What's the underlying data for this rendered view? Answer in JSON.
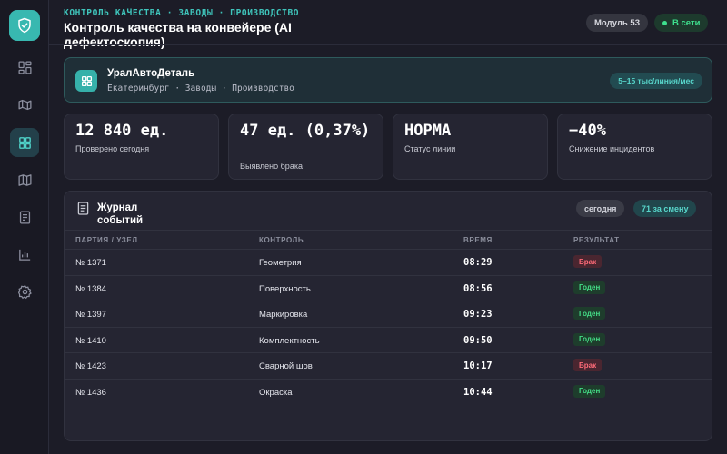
{
  "colors": {
    "accent": "#3fc4bb",
    "bad": "#ff6b78",
    "good": "#44dc86"
  },
  "sidebar": {
    "logo_icon": "shield-check-icon",
    "items": [
      {
        "icon": "grid-icon"
      },
      {
        "icon": "map-fold-icon"
      },
      {
        "icon": "squares-icon",
        "active": true
      },
      {
        "icon": "map-icon"
      },
      {
        "icon": "document-icon"
      },
      {
        "icon": "bar-chart-icon"
      },
      {
        "icon": "gear-icon"
      }
    ]
  },
  "header": {
    "breadcrumb": "КОНТРОЛЬ КАЧЕСТВА · ЗАВОДЫ · ПРОИЗВОДСТВО",
    "title": "Контроль качества на конвейере (AI дефектоскопия)",
    "module": "Модуль 53",
    "status": "В сети"
  },
  "org": {
    "name": "УралАвтоДеталь",
    "subtitle": "Екатеринбург · Заводы · Производство",
    "badge": "5–15 тыс/линия/мес"
  },
  "stats": [
    {
      "value": "12 840 ед.",
      "label": "Проверено сегодня"
    },
    {
      "value": "47 ед. (0,37%)",
      "label": "Выявлено брака"
    },
    {
      "value": "НОРМА",
      "label": "Статус линии"
    },
    {
      "value": "−40%",
      "label": "Снижение инцидентов"
    }
  ],
  "journal": {
    "title": "Журнал событий",
    "chip_today": "сегодня",
    "chip_shift": "71 за смену",
    "columns": [
      "ПАРТИЯ / УЗЕЛ",
      "КОНТРОЛЬ",
      "ВРЕМЯ",
      "РЕЗУЛЬТАТ"
    ],
    "rows": [
      {
        "batch": "№ 1371",
        "control": "Геометрия",
        "time": "08:29",
        "result": "Брак",
        "ok": false
      },
      {
        "batch": "№ 1384",
        "control": "Поверхность",
        "time": "08:56",
        "result": "Годен",
        "ok": true
      },
      {
        "batch": "№ 1397",
        "control": "Маркировка",
        "time": "09:23",
        "result": "Годен",
        "ok": true
      },
      {
        "batch": "№ 1410",
        "control": "Комплектность",
        "time": "09:50",
        "result": "Годен",
        "ok": true
      },
      {
        "batch": "№ 1423",
        "control": "Сварной шов",
        "time": "10:17",
        "result": "Брак",
        "ok": false
      },
      {
        "batch": "№ 1436",
        "control": "Окраска",
        "time": "10:44",
        "result": "Годен",
        "ok": true
      }
    ]
  }
}
